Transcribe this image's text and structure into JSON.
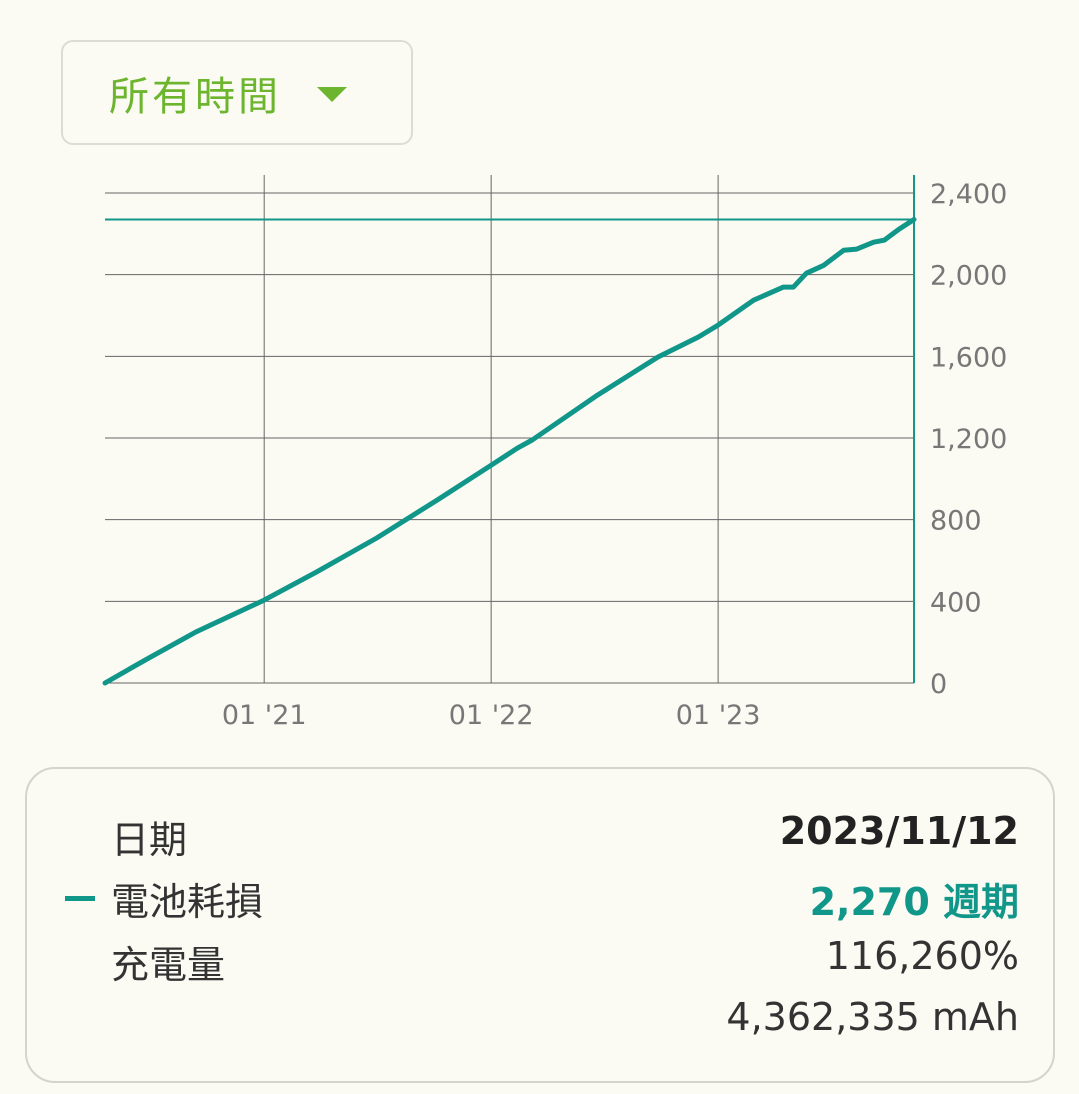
{
  "range_selector": {
    "label": "所有時間"
  },
  "colors": {
    "accent": "#6db52e",
    "series": "#11968a",
    "grid": "#555555"
  },
  "chart_data": {
    "type": "line",
    "title": "",
    "xlabel": "",
    "ylabel": "",
    "y_axis_position": "right",
    "ylim": [
      0,
      2400
    ],
    "yticks": [
      0,
      400,
      800,
      1200,
      1600,
      2000,
      2400
    ],
    "ytick_labels": [
      "0",
      "400",
      "800",
      "1,200",
      "1,600",
      "2,000",
      "2,400"
    ],
    "xticks": [
      "2021-01-01",
      "2022-01-01",
      "2023-01-01"
    ],
    "xtick_labels": [
      "01 '21",
      "01 '22",
      "01 '23"
    ],
    "xlim": [
      "2020-04-20",
      "2023-11-12"
    ],
    "grid": true,
    "cursor": {
      "date": "2023-11-12",
      "value": 2270
    },
    "series": [
      {
        "points": [
          [
            "2020-04-20",
            0
          ],
          [
            "2020-06-24",
            113
          ],
          [
            "2020-09-13",
            250
          ],
          [
            "2021-01-01",
            406
          ],
          [
            "2021-03-26",
            543
          ],
          [
            "2021-07-01",
            710
          ],
          [
            "2021-10-06",
            896
          ],
          [
            "2022-01-01",
            1067
          ],
          [
            "2022-02-12",
            1150
          ],
          [
            "2022-03-08",
            1190
          ],
          [
            "2022-06-21",
            1410
          ],
          [
            "2022-09-26",
            1596
          ],
          [
            "2022-11-30",
            1694
          ],
          [
            "2023-01-01",
            1753
          ],
          [
            "2023-02-27",
            1875
          ],
          [
            "2023-04-16",
            1939
          ],
          [
            "2023-05-02",
            1939
          ],
          [
            "2023-05-23",
            2007
          ],
          [
            "2023-06-20",
            2046
          ],
          [
            "2023-07-22",
            2120
          ],
          [
            "2023-08-12",
            2125
          ],
          [
            "2023-09-08",
            2159
          ],
          [
            "2023-09-25",
            2169
          ],
          [
            "2023-10-19",
            2223
          ],
          [
            "2023-11-12",
            2270
          ]
        ]
      }
    ]
  },
  "details": {
    "date_label": "日期",
    "date_value": "2023/11/12",
    "wear_label": "電池耗損",
    "wear_value": "2,270 週期",
    "charge_label": "充電量",
    "charge_percent": "116,260%",
    "charge_mah": "4,362,335 mAh"
  }
}
